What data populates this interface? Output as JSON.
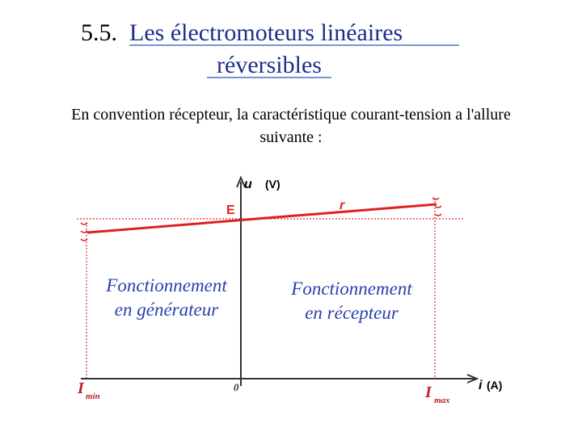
{
  "slide": {
    "title": {
      "number": "5.5.",
      "lines": [
        "Les électromoteurs linéaires",
        "réversibles"
      ]
    },
    "text": {
      "lines": [
        "En convention récepteur, la caractéristique courant-tension a l'allure",
        "suivante :"
      ]
    },
    "diagram": {
      "y_axis": {
        "symbol": "u",
        "unit": "(V)"
      },
      "x_axis": {
        "symbol": "i",
        "unit": "(A)"
      },
      "origin": "0",
      "emf": "E",
      "resistance": "r",
      "i_min": {
        "symbol": "I",
        "subscript": "min"
      },
      "i_max": {
        "symbol": "I",
        "subscript": "max"
      },
      "generator_zone": [
        "Fonctionnement",
        "en générateur"
      ],
      "receiver_zone": [
        "Fonctionnement",
        "en récepteur"
      ]
    }
  }
}
